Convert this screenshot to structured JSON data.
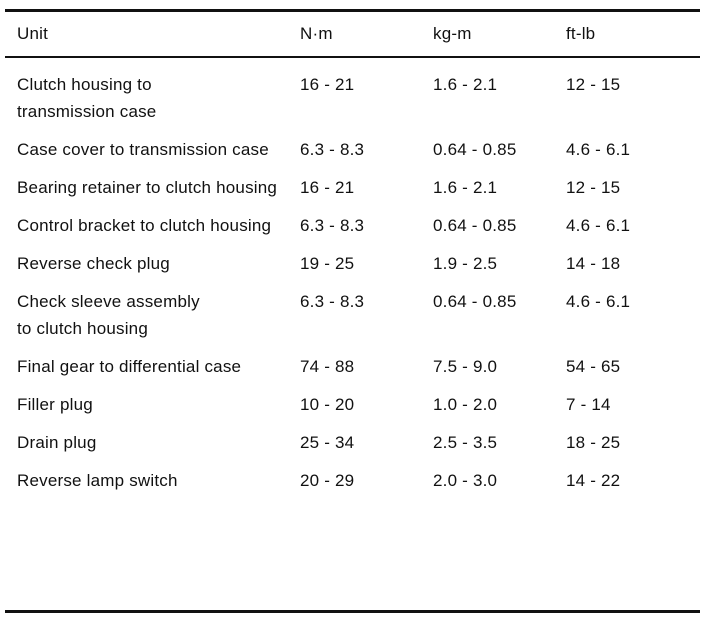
{
  "headers": [
    "Unit",
    "N·m",
    "kg-m",
    "ft-lb"
  ],
  "rows": [
    {
      "unit": "Clutch housing to transmission case",
      "nm": "16 - 21",
      "kgm": "1.6 - 2.1",
      "ftlb": "12 - 15"
    },
    {
      "unit": "Case cover to transmission case",
      "nm": "6.3 - 8.3",
      "kgm": "0.64 - 0.85",
      "ftlb": "4.6 - 6.1"
    },
    {
      "unit": "Bearing retainer to clutch housing",
      "nm": "16 - 21",
      "kgm": "1.6 - 2.1",
      "ftlb": "12 - 15"
    },
    {
      "unit": "Control bracket to clutch housing",
      "nm": "6.3 - 8.3",
      "kgm": "0.64 - 0.85",
      "ftlb": "4.6 - 6.1"
    },
    {
      "unit": "Reverse check plug",
      "nm": "19 - 25",
      "kgm": "1.9 - 2.5",
      "ftlb": "14 - 18"
    },
    {
      "unit": "Check sleeve assembly to clutch housing",
      "nm": "6.3 - 8.3",
      "kgm": "0.64 - 0.85",
      "ftlb": "4.6 - 6.1"
    },
    {
      "unit": "Final gear to differential case",
      "nm": "74 - 88",
      "kgm": "7.5 - 9.0",
      "ftlb": "54 - 65"
    },
    {
      "unit": "Filler plug",
      "nm": "10 - 20",
      "kgm": "1.0 - 2.0",
      "ftlb": "7 - 14"
    },
    {
      "unit": "Drain plug",
      "nm": "25 - 34",
      "kgm": "2.5 - 3.5",
      "ftlb": "18 - 25"
    },
    {
      "unit": "Reverse lamp switch",
      "nm": "20 - 29",
      "kgm": "2.0 - 3.0",
      "ftlb": "14 - 22"
    }
  ]
}
